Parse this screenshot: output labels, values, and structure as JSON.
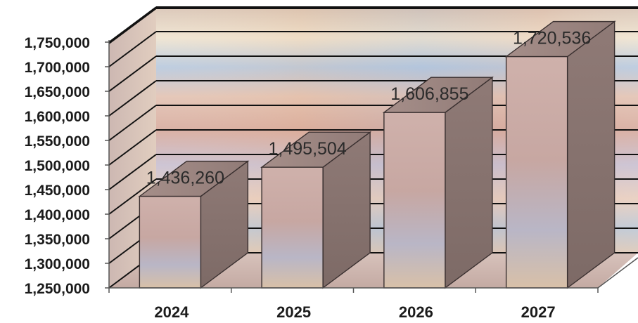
{
  "chart_data": {
    "type": "bar",
    "style": "3d-column",
    "categories": [
      "2024",
      "2025",
      "2026",
      "2027"
    ],
    "values": [
      1436260,
      1495504,
      1606855,
      1720536
    ],
    "data_labels": [
      "1,436,260",
      "1,495,504",
      "1,606,855",
      "1,720,536"
    ],
    "y_ticks": [
      1250000,
      1300000,
      1350000,
      1400000,
      1450000,
      1500000,
      1550000,
      1600000,
      1650000,
      1700000,
      1750000
    ],
    "y_tick_labels": [
      "1,250,000",
      "1,300,000",
      "1,350,000",
      "1,400,000",
      "1,450,000",
      "1,500,000",
      "1,550,000",
      "1,600,000",
      "1,650,000",
      "1,700,000",
      "1,750,000"
    ],
    "ylim": [
      1250000,
      1800000
    ],
    "title": "",
    "xlabel": "",
    "ylabel": "",
    "grid": true,
    "legend": "none"
  },
  "colors": {
    "bar_front": "#c9a9a3",
    "bar_side": "#8a7470",
    "bar_top": "#9d8681",
    "gridline": "#111111",
    "wall_light": "#e7d6c4",
    "wall_blue": "#aebfd6",
    "wall_rose": "#d9b0a4"
  }
}
